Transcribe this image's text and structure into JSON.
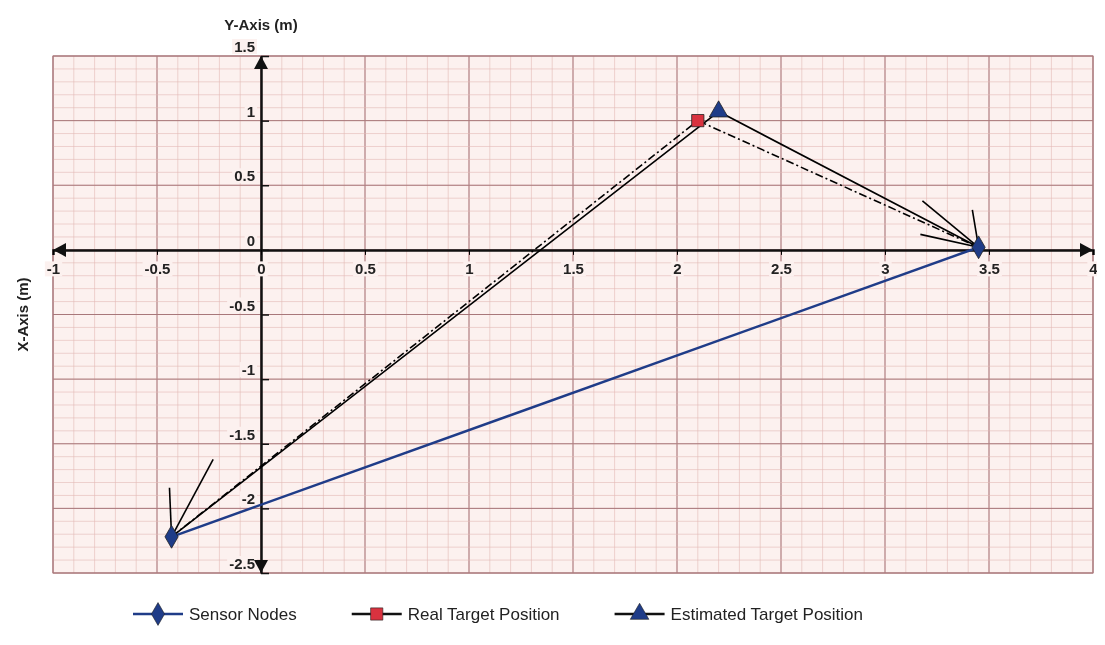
{
  "chart_data": {
    "type": "scatter",
    "ylabel": "X-Axis (m)",
    "annotations": [
      "Y-Axis (m)"
    ],
    "xlim": [
      -1,
      4
    ],
    "xticks": [
      -1,
      -0.5,
      0,
      0.5,
      1,
      1.5,
      2,
      2.5,
      3,
      3.5,
      4
    ],
    "ylim": [
      -2.5,
      1.5
    ],
    "yticks": [
      -2.5,
      -2,
      -1.5,
      -1,
      -0.5,
      0,
      0.5,
      1,
      1.5
    ],
    "grid": true,
    "legend": "bottom",
    "series": [
      {
        "type": "line",
        "color": "#000000",
        "line_style": "dashed",
        "marker": "none",
        "x": [
          -0.43,
          2.1,
          3.45
        ],
        "values": [
          -2.22,
          1.0,
          0.02
        ]
      },
      {
        "type": "line",
        "color": "#000000",
        "line_style": "solid",
        "marker": "none",
        "x": [
          -0.43,
          2.2,
          3.45
        ],
        "values": [
          -2.22,
          1.07,
          0.02
        ]
      },
      {
        "type": "line",
        "color": "#000000",
        "line_style": "solid",
        "marker": "none",
        "x": [
          -0.43,
          -0.44
        ],
        "values": [
          -2.22,
          -1.84
        ]
      },
      {
        "type": "line",
        "color": "#000000",
        "line_style": "solid",
        "marker": "none",
        "x": [
          -0.43,
          -0.23
        ],
        "values": [
          -2.22,
          -1.62
        ]
      },
      {
        "type": "line",
        "color": "#000000",
        "line_style": "solid",
        "marker": "none",
        "x": [
          3.45,
          3.18
        ],
        "values": [
          0.02,
          0.38
        ]
      },
      {
        "type": "line",
        "color": "#000000",
        "line_style": "solid",
        "marker": "none",
        "x": [
          3.45,
          3.42
        ],
        "values": [
          0.02,
          0.31
        ]
      },
      {
        "type": "line",
        "color": "#000000",
        "line_style": "solid",
        "marker": "none",
        "x": [
          3.45,
          3.17
        ],
        "values": [
          0.02,
          0.12
        ]
      },
      {
        "name": "Sensor Nodes",
        "type": "line",
        "color": "#1f3c88",
        "line_style": "solid",
        "marker": "diamond",
        "x": [
          -0.43,
          3.45
        ],
        "values": [
          -2.22,
          0.02
        ]
      },
      {
        "name": "Real Target Position",
        "color": "#d9323f",
        "marker": "square",
        "x": [
          2.1
        ],
        "values": [
          1.0
        ]
      },
      {
        "name": "Estimated Target Position",
        "color": "#1f3c88",
        "marker": "triangle",
        "x": [
          2.2
        ],
        "values": [
          1.07
        ]
      }
    ]
  }
}
